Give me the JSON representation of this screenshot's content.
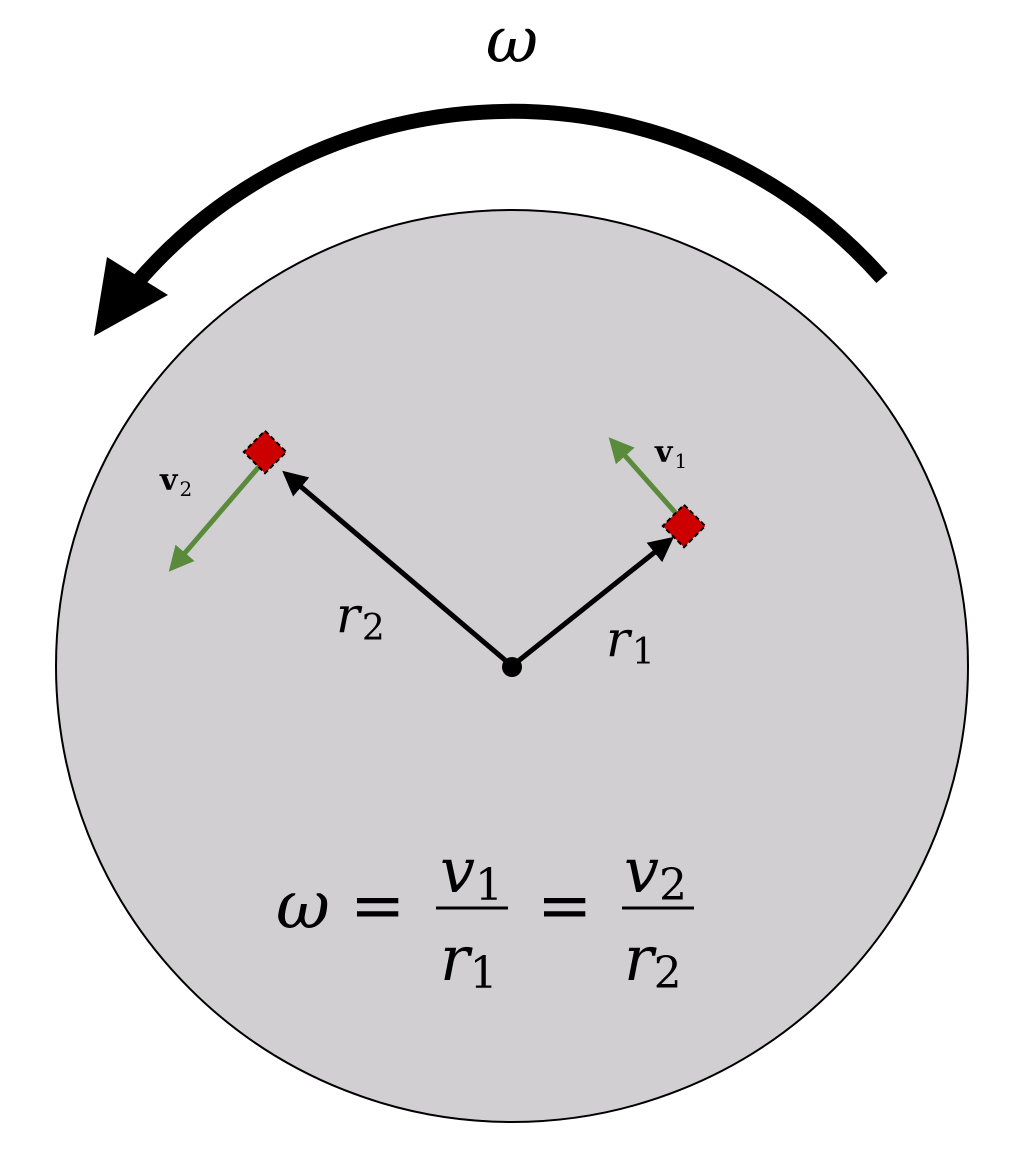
{
  "diagram": {
    "rotation_symbol": "ω",
    "vectors": {
      "r1": {
        "symbol": "r",
        "subscript": "1"
      },
      "r2": {
        "symbol": "r",
        "subscript": "2"
      },
      "v1": {
        "symbol": "v",
        "subscript": "1"
      },
      "v2": {
        "symbol": "v",
        "subscript": "2"
      }
    },
    "equation": {
      "lhs": "ω",
      "equals": "=",
      "frac1": {
        "num": "v",
        "num_sub": "1",
        "den": "r",
        "den_sub": "1"
      },
      "frac2": {
        "num": "v",
        "num_sub": "2",
        "den": "r",
        "den_sub": "2"
      }
    },
    "colors": {
      "disk_fill": "#d1cfd1",
      "disk_stroke": "#000000",
      "arrow_black": "#000000",
      "velocity_green": "#5a8a3c",
      "mass_fill": "#cc0000"
    }
  }
}
